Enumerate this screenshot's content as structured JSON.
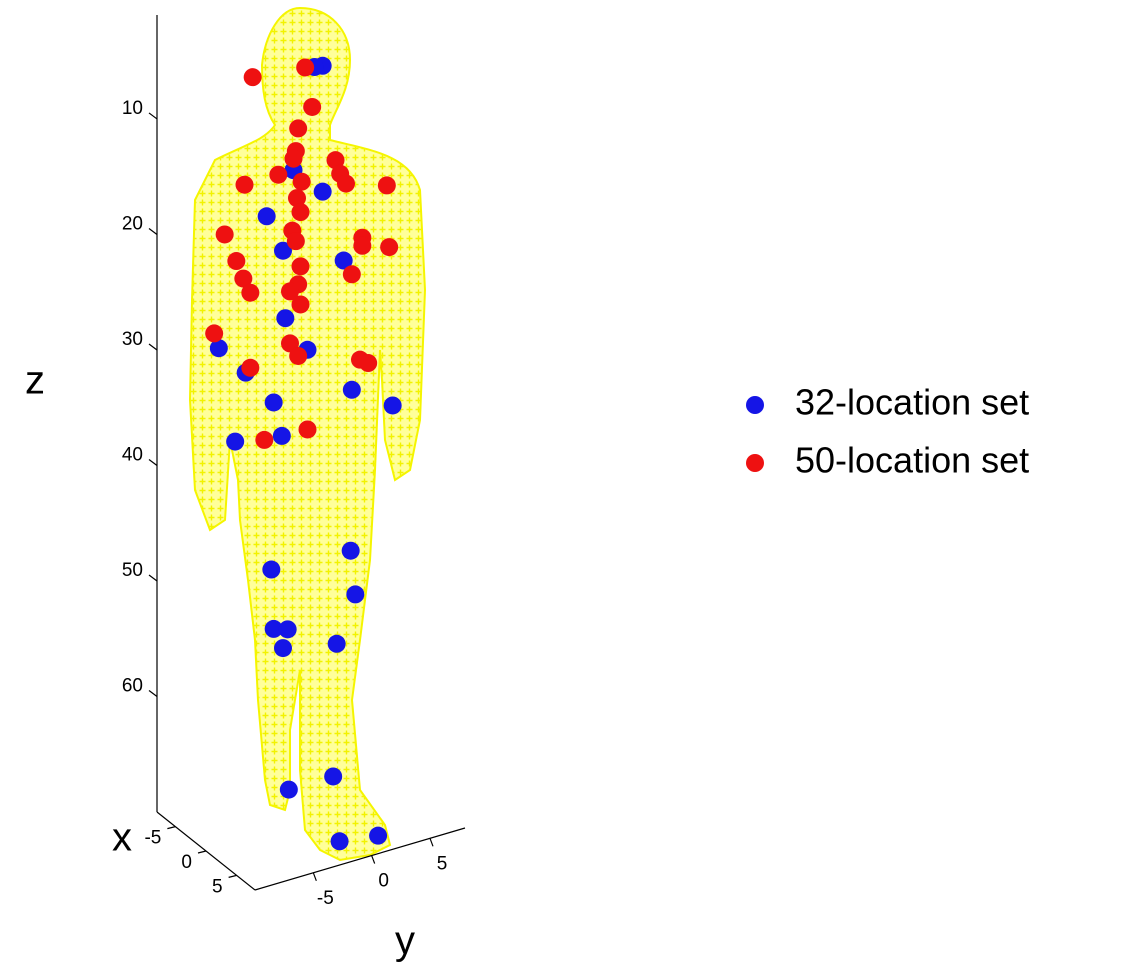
{
  "chart_data": {
    "type": "scatter3d",
    "xlabel": "x",
    "ylabel": "y",
    "zlabel": "z",
    "xlim": [
      -8,
      8
    ],
    "ylim": [
      -10,
      8
    ],
    "zlim": [
      1,
      70
    ],
    "xticks": [
      -5,
      0,
      5
    ],
    "yticks": [
      -5,
      0,
      5
    ],
    "zticks": [
      10,
      20,
      30,
      40,
      50,
      60
    ],
    "zdir": "reverse",
    "grid": false,
    "legend": "right",
    "series": [
      {
        "name": "32-location set",
        "color": "#1515e6",
        "x": [
          0,
          0,
          0,
          0,
          0,
          0,
          0,
          0,
          0,
          0,
          0,
          0,
          0,
          0,
          0,
          0,
          0,
          0,
          0,
          0,
          0,
          0,
          0,
          0,
          0,
          6,
          6
        ],
        "y": [
          0.0,
          -0.7,
          -2.5,
          0.0,
          -4.8,
          -3.4,
          1.8,
          -3.2,
          -1.3,
          -8.9,
          -6.6,
          2.5,
          6.0,
          -4.2,
          -3.5,
          -7.5,
          2.4,
          -4.4,
          2.8,
          -4.2,
          -3.0,
          -3.4,
          1.2,
          0.9,
          -2.9,
          -1.7,
          1.6
        ],
        "z": [
          5.0,
          4.9,
          13.3,
          15.9,
          16.6,
          20.0,
          22.4,
          25.9,
          29.2,
          26.8,
          29.6,
          33.8,
          36.2,
          32.9,
          36.0,
          35.3,
          47.7,
          47.3,
          51.6,
          52.5,
          52.9,
          54.4,
          55.4,
          66.8,
          66.8,
          69.1,
          69.6
        ]
      },
      {
        "name": "50-location set",
        "color": "#ee1111",
        "x": [
          0,
          0,
          0,
          0,
          0,
          0,
          0,
          0,
          0,
          0,
          0,
          0,
          0,
          0,
          0,
          0,
          0,
          0,
          0,
          0,
          0,
          0,
          0,
          0,
          0,
          0,
          0,
          0,
          0,
          0,
          0,
          0,
          0,
          0,
          0,
          0,
          0
        ],
        "y": [
          -6.0,
          -1.5,
          -0.9,
          -2.1,
          -2.3,
          -2.5,
          -3.8,
          -1.8,
          -2.2,
          -1.9,
          -2.6,
          -2.3,
          1.1,
          1.5,
          2.0,
          5.5,
          -6.7,
          -8.4,
          3.4,
          3.4,
          5.7,
          -7.4,
          -6.8,
          -6.2,
          -1.9,
          -2.1,
          -2.8,
          -1.9,
          2.5,
          -9.3,
          -2.8,
          -2.1,
          3.2,
          3.9,
          -6.2,
          -5.0,
          -1.3
        ],
        "z": [
          4.2,
          4.7,
          8.3,
          9.8,
          11.7,
          12.3,
          13.3,
          14.5,
          15.8,
          17.1,
          18.5,
          19.5,
          13.5,
          14.8,
          15.8,
          17.0,
          13.3,
          17.1,
          20.9,
          21.6,
          22.4,
          19.7,
          21.4,
          22.8,
          21.8,
          23.3,
          23.7,
          25.1,
          23.8,
          25.4,
          28.2,
          29.5,
          31.4,
          31.9,
          29.3,
          35.9,
          36.1
        ]
      }
    ]
  }
}
